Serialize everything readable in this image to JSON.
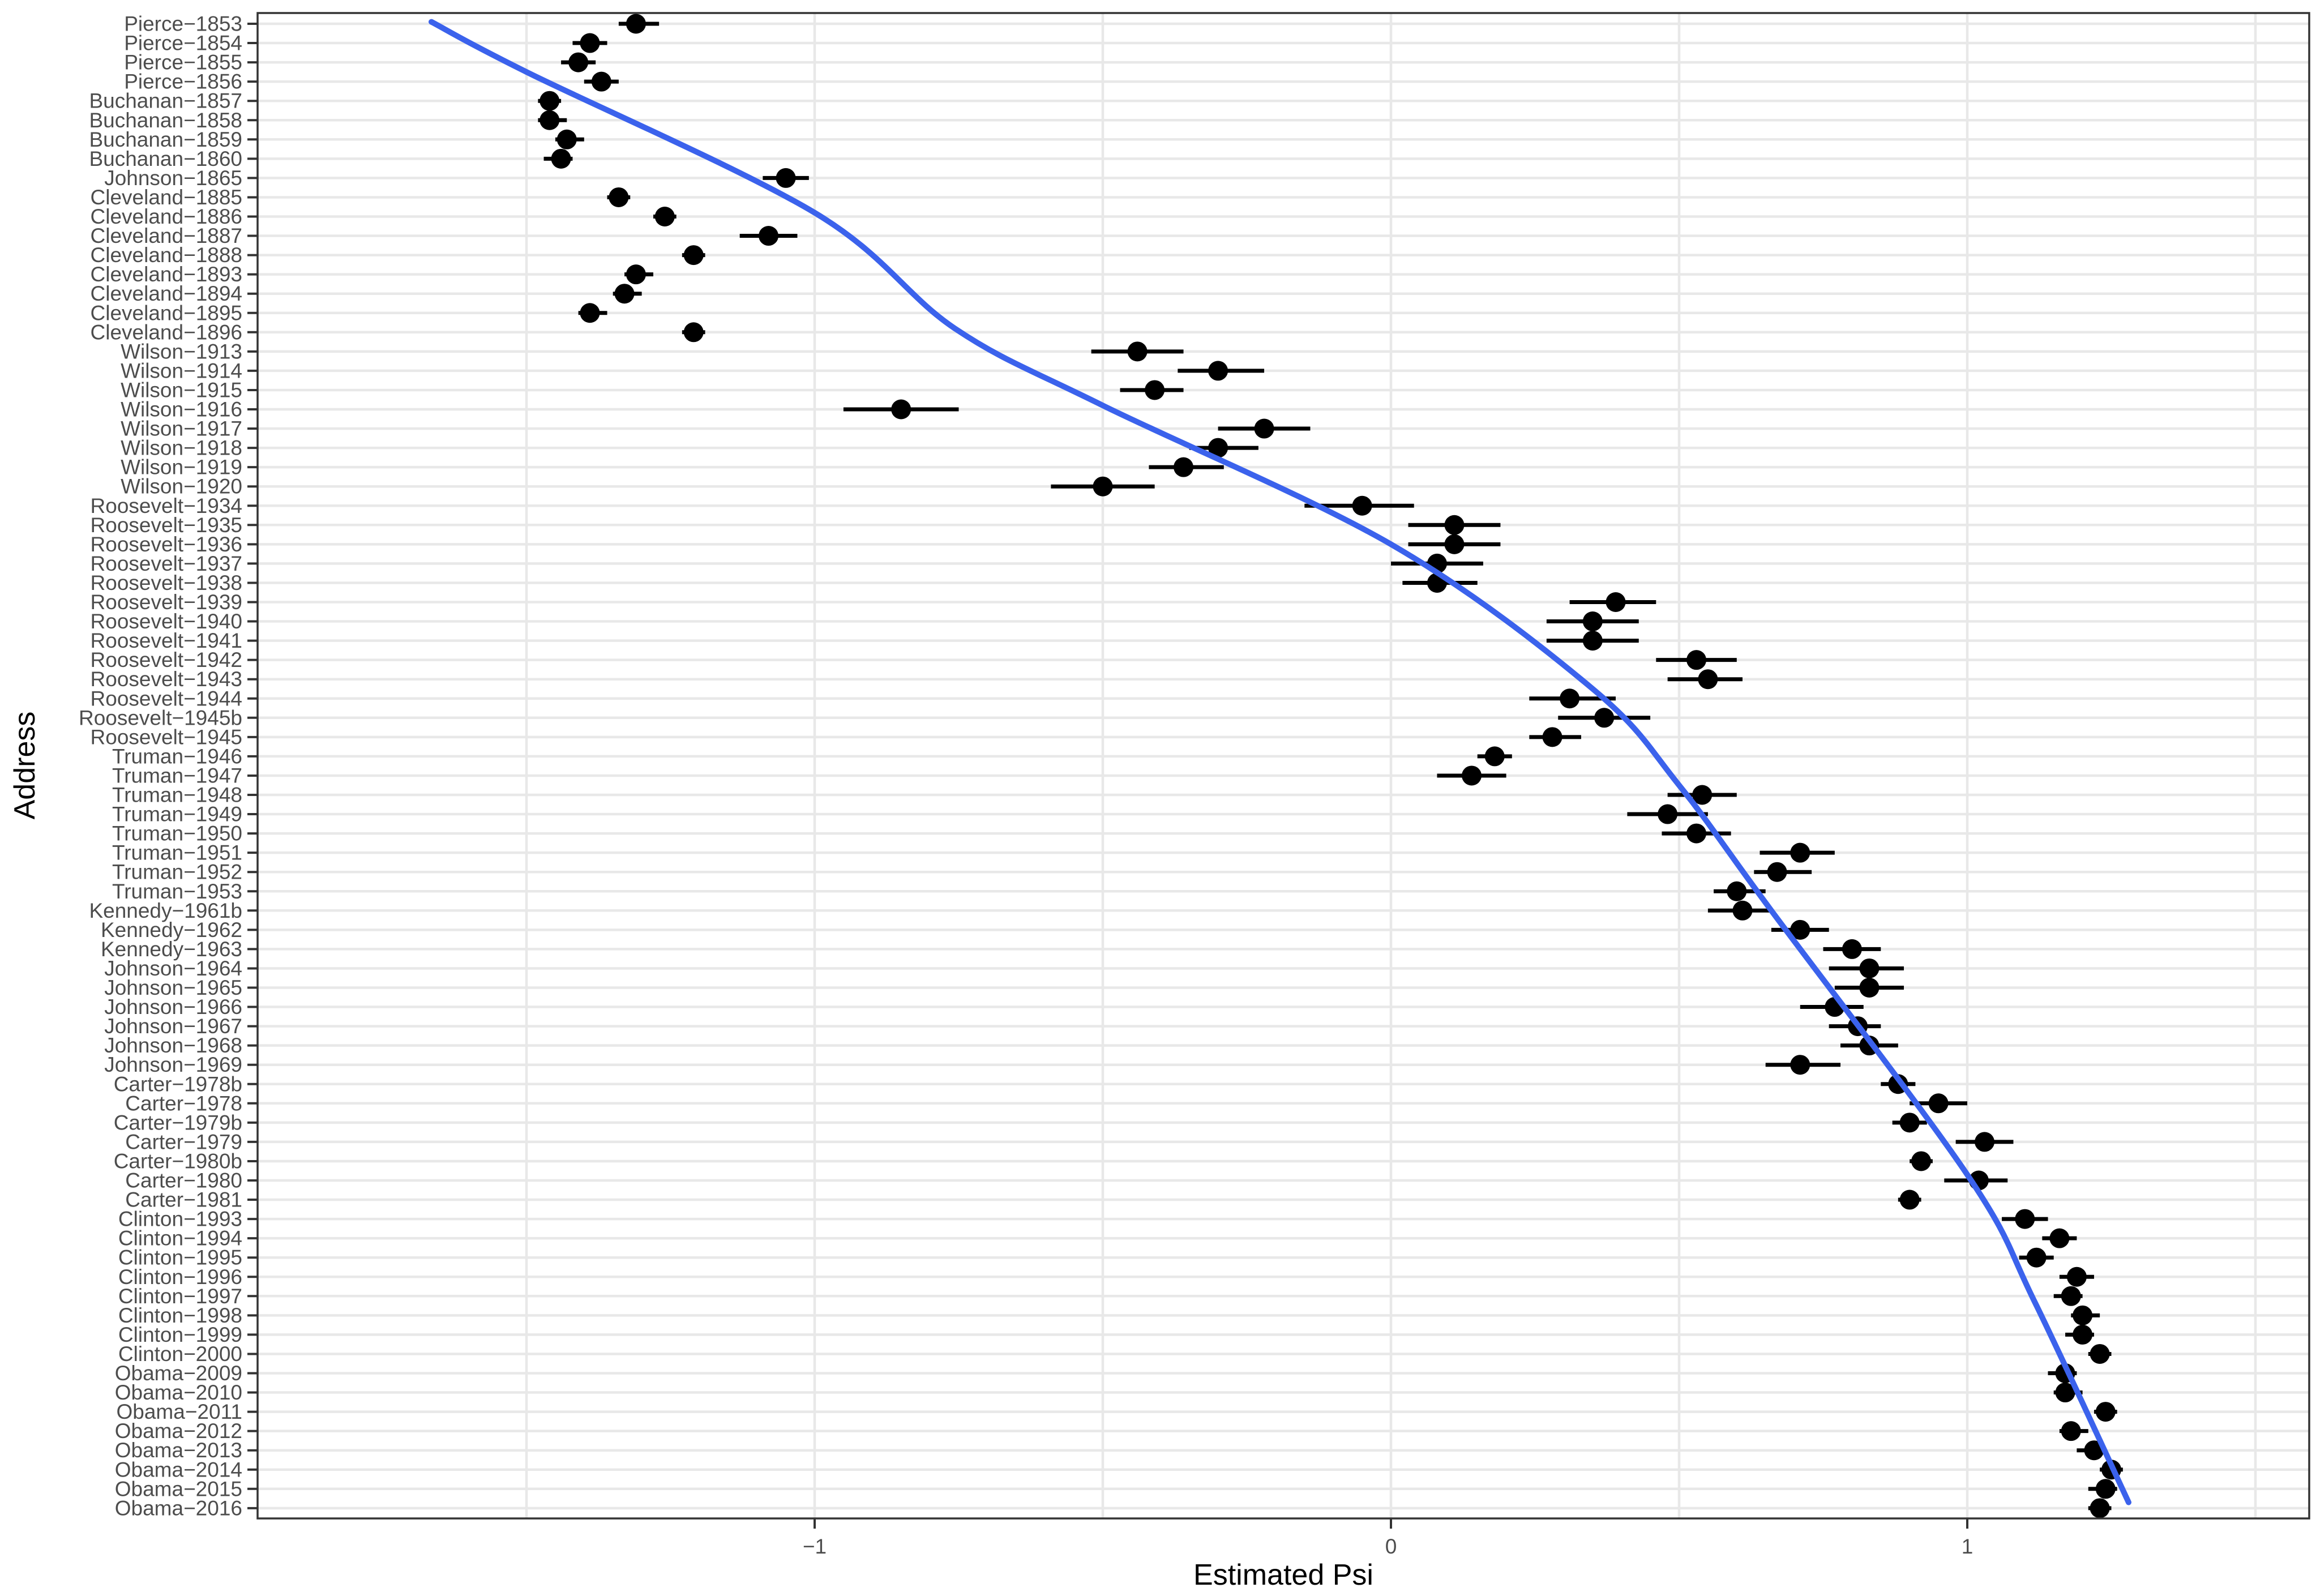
{
  "chart_data": {
    "type": "scatter",
    "title": "",
    "xlabel": "Estimated Psi",
    "ylabel": "Address",
    "xlim": [
      -1.97,
      1.59
    ],
    "x_ticks": [
      {
        "value": -1,
        "label": "-1"
      },
      {
        "value": 0,
        "label": "0"
      },
      {
        "value": 1,
        "label": "1"
      }
    ],
    "x_gridlines": [
      -1.5,
      -1.0,
      -0.5,
      0.0,
      0.5,
      1.0,
      1.5
    ],
    "grid": "on",
    "legend_position": "none",
    "series_description": "Point estimate of Psi with horizontal confidence interval per address, plus smooth trend line",
    "rows": [
      {
        "label": "Pierce-1853",
        "psi": -1.31,
        "lo": -1.34,
        "hi": -1.27
      },
      {
        "label": "Pierce-1854",
        "psi": -1.39,
        "lo": -1.42,
        "hi": -1.36
      },
      {
        "label": "Pierce-1855",
        "psi": -1.41,
        "lo": -1.44,
        "hi": -1.38
      },
      {
        "label": "Pierce-1856",
        "psi": -1.37,
        "lo": -1.4,
        "hi": -1.34
      },
      {
        "label": "Buchanan-1857",
        "psi": -1.46,
        "lo": -1.48,
        "hi": -1.44
      },
      {
        "label": "Buchanan-1858",
        "psi": -1.46,
        "lo": -1.48,
        "hi": -1.43
      },
      {
        "label": "Buchanan-1859",
        "psi": -1.43,
        "lo": -1.45,
        "hi": -1.4
      },
      {
        "label": "Buchanan-1860",
        "psi": -1.44,
        "lo": -1.47,
        "hi": -1.42
      },
      {
        "label": "Johnson-1865",
        "psi": -1.05,
        "lo": -1.09,
        "hi": -1.01
      },
      {
        "label": "Cleveland-1885",
        "psi": -1.34,
        "lo": -1.36,
        "hi": -1.32
      },
      {
        "label": "Cleveland-1886",
        "psi": -1.26,
        "lo": -1.28,
        "hi": -1.24
      },
      {
        "label": "Cleveland-1887",
        "psi": -1.08,
        "lo": -1.13,
        "hi": -1.03
      },
      {
        "label": "Cleveland-1888",
        "psi": -1.21,
        "lo": -1.23,
        "hi": -1.19
      },
      {
        "label": "Cleveland-1893",
        "psi": -1.31,
        "lo": -1.33,
        "hi": -1.28
      },
      {
        "label": "Cleveland-1894",
        "psi": -1.33,
        "lo": -1.35,
        "hi": -1.3
      },
      {
        "label": "Cleveland-1895",
        "psi": -1.39,
        "lo": -1.41,
        "hi": -1.36
      },
      {
        "label": "Cleveland-1896",
        "psi": -1.21,
        "lo": -1.23,
        "hi": -1.19
      },
      {
        "label": "Wilson-1913",
        "psi": -0.44,
        "lo": -0.52,
        "hi": -0.36
      },
      {
        "label": "Wilson-1914",
        "psi": -0.3,
        "lo": -0.37,
        "hi": -0.22
      },
      {
        "label": "Wilson-1915",
        "psi": -0.41,
        "lo": -0.47,
        "hi": -0.36
      },
      {
        "label": "Wilson-1916",
        "psi": -0.85,
        "lo": -0.95,
        "hi": -0.75
      },
      {
        "label": "Wilson-1917",
        "psi": -0.22,
        "lo": -0.3,
        "hi": -0.14
      },
      {
        "label": "Wilson-1918",
        "psi": -0.3,
        "lo": -0.35,
        "hi": -0.23
      },
      {
        "label": "Wilson-1919",
        "psi": -0.36,
        "lo": -0.42,
        "hi": -0.29
      },
      {
        "label": "Wilson-1920",
        "psi": -0.5,
        "lo": -0.59,
        "hi": -0.41
      },
      {
        "label": "Roosevelt-1934",
        "psi": -0.05,
        "lo": -0.15,
        "hi": 0.04
      },
      {
        "label": "Roosevelt-1935",
        "psi": 0.11,
        "lo": 0.03,
        "hi": 0.19
      },
      {
        "label": "Roosevelt-1936",
        "psi": 0.11,
        "lo": 0.03,
        "hi": 0.19
      },
      {
        "label": "Roosevelt-1937",
        "psi": 0.08,
        "lo": 0.0,
        "hi": 0.16
      },
      {
        "label": "Roosevelt-1938",
        "psi": 0.08,
        "lo": 0.02,
        "hi": 0.15
      },
      {
        "label": "Roosevelt-1939",
        "psi": 0.39,
        "lo": 0.31,
        "hi": 0.46
      },
      {
        "label": "Roosevelt-1940",
        "psi": 0.35,
        "lo": 0.27,
        "hi": 0.43
      },
      {
        "label": "Roosevelt-1941",
        "psi": 0.35,
        "lo": 0.27,
        "hi": 0.43
      },
      {
        "label": "Roosevelt-1942",
        "psi": 0.53,
        "lo": 0.46,
        "hi": 0.6
      },
      {
        "label": "Roosevelt-1943",
        "psi": 0.55,
        "lo": 0.48,
        "hi": 0.61
      },
      {
        "label": "Roosevelt-1944",
        "psi": 0.31,
        "lo": 0.24,
        "hi": 0.39
      },
      {
        "label": "Roosevelt-1945b",
        "psi": 0.37,
        "lo": 0.29,
        "hi": 0.45
      },
      {
        "label": "Roosevelt-1945",
        "psi": 0.28,
        "lo": 0.24,
        "hi": 0.33
      },
      {
        "label": "Truman-1946",
        "psi": 0.18,
        "lo": 0.15,
        "hi": 0.21
      },
      {
        "label": "Truman-1947",
        "psi": 0.14,
        "lo": 0.08,
        "hi": 0.2
      },
      {
        "label": "Truman-1948",
        "psi": 0.54,
        "lo": 0.48,
        "hi": 0.6
      },
      {
        "label": "Truman-1949",
        "psi": 0.48,
        "lo": 0.41,
        "hi": 0.55
      },
      {
        "label": "Truman-1950",
        "psi": 0.53,
        "lo": 0.47,
        "hi": 0.59
      },
      {
        "label": "Truman-1951",
        "psi": 0.71,
        "lo": 0.64,
        "hi": 0.77
      },
      {
        "label": "Truman-1952",
        "psi": 0.67,
        "lo": 0.63,
        "hi": 0.73
      },
      {
        "label": "Truman-1953",
        "psi": 0.6,
        "lo": 0.56,
        "hi": 0.65
      },
      {
        "label": "Kennedy-1961b",
        "psi": 0.61,
        "lo": 0.55,
        "hi": 0.66
      },
      {
        "label": "Kennedy-1962",
        "psi": 0.71,
        "lo": 0.66,
        "hi": 0.76
      },
      {
        "label": "Kennedy-1963",
        "psi": 0.8,
        "lo": 0.75,
        "hi": 0.85
      },
      {
        "label": "Johnson-1964",
        "psi": 0.83,
        "lo": 0.76,
        "hi": 0.89
      },
      {
        "label": "Johnson-1965",
        "psi": 0.83,
        "lo": 0.77,
        "hi": 0.89
      },
      {
        "label": "Johnson-1966",
        "psi": 0.77,
        "lo": 0.71,
        "hi": 0.82
      },
      {
        "label": "Johnson-1967",
        "psi": 0.81,
        "lo": 0.76,
        "hi": 0.85
      },
      {
        "label": "Johnson-1968",
        "psi": 0.83,
        "lo": 0.78,
        "hi": 0.88
      },
      {
        "label": "Johnson-1969",
        "psi": 0.71,
        "lo": 0.65,
        "hi": 0.78
      },
      {
        "label": "Carter-1978b",
        "psi": 0.88,
        "lo": 0.85,
        "hi": 0.91
      },
      {
        "label": "Carter-1978",
        "psi": 0.95,
        "lo": 0.9,
        "hi": 1.0
      },
      {
        "label": "Carter-1979b",
        "psi": 0.9,
        "lo": 0.87,
        "hi": 0.93
      },
      {
        "label": "Carter-1979",
        "psi": 1.03,
        "lo": 0.98,
        "hi": 1.08
      },
      {
        "label": "Carter-1980b",
        "psi": 0.92,
        "lo": 0.9,
        "hi": 0.94
      },
      {
        "label": "Carter-1980",
        "psi": 1.02,
        "lo": 0.96,
        "hi": 1.07
      },
      {
        "label": "Carter-1981",
        "psi": 0.9,
        "lo": 0.88,
        "hi": 0.92
      },
      {
        "label": "Clinton-1993",
        "psi": 1.1,
        "lo": 1.06,
        "hi": 1.14
      },
      {
        "label": "Clinton-1994",
        "psi": 1.16,
        "lo": 1.13,
        "hi": 1.19
      },
      {
        "label": "Clinton-1995",
        "psi": 1.12,
        "lo": 1.09,
        "hi": 1.15
      },
      {
        "label": "Clinton-1996",
        "psi": 1.19,
        "lo": 1.16,
        "hi": 1.22
      },
      {
        "label": "Clinton-1997",
        "psi": 1.18,
        "lo": 1.15,
        "hi": 1.2
      },
      {
        "label": "Clinton-1998",
        "psi": 1.2,
        "lo": 1.18,
        "hi": 1.23
      },
      {
        "label": "Clinton-1999",
        "psi": 1.2,
        "lo": 1.17,
        "hi": 1.22
      },
      {
        "label": "Clinton-2000",
        "psi": 1.23,
        "lo": 1.21,
        "hi": 1.25
      },
      {
        "label": "Obama-2009",
        "psi": 1.17,
        "lo": 1.14,
        "hi": 1.19
      },
      {
        "label": "Obama-2010",
        "psi": 1.17,
        "lo": 1.15,
        "hi": 1.2
      },
      {
        "label": "Obama-2011",
        "psi": 1.24,
        "lo": 1.22,
        "hi": 1.26
      },
      {
        "label": "Obama-2012",
        "psi": 1.18,
        "lo": 1.16,
        "hi": 1.21
      },
      {
        "label": "Obama-2013",
        "psi": 1.22,
        "lo": 1.19,
        "hi": 1.24
      },
      {
        "label": "Obama-2014",
        "psi": 1.25,
        "lo": 1.23,
        "hi": 1.27
      },
      {
        "label": "Obama-2015",
        "psi": 1.24,
        "lo": 1.21,
        "hi": 1.26
      },
      {
        "label": "Obama-2016",
        "psi": 1.23,
        "lo": 1.21,
        "hi": 1.25
      }
    ],
    "smooth_line": {
      "description": "blue smooth trend (row index vs psi)",
      "points": [
        {
          "row": 0.9,
          "x": -1.665
        },
        {
          "row": 3.5,
          "x": -1.5
        },
        {
          "row": 10.8,
          "x": -1.0
        },
        {
          "row": 16.8,
          "x": -0.757
        },
        {
          "row": 20.8,
          "x": -0.5
        },
        {
          "row": 28.0,
          "x": 0.0
        },
        {
          "row": 35.5,
          "x": 0.35
        },
        {
          "row": 40.5,
          "x": 0.5
        },
        {
          "row": 47.0,
          "x": 0.66
        },
        {
          "row": 60.7,
          "x": 1.0
        },
        {
          "row": 67.3,
          "x": 1.117
        },
        {
          "row": 77.7,
          "x": 1.28
        }
      ]
    },
    "colors": {
      "point": "#000000",
      "ci_bar": "#000000",
      "smooth": "#3B62EC",
      "gridline": "#E8E8E8",
      "panel_border": "#333333",
      "tick": "#333333",
      "tick_label": "#4D4D4D",
      "axis_title": "#000000",
      "background": "#FFFFFF"
    }
  }
}
